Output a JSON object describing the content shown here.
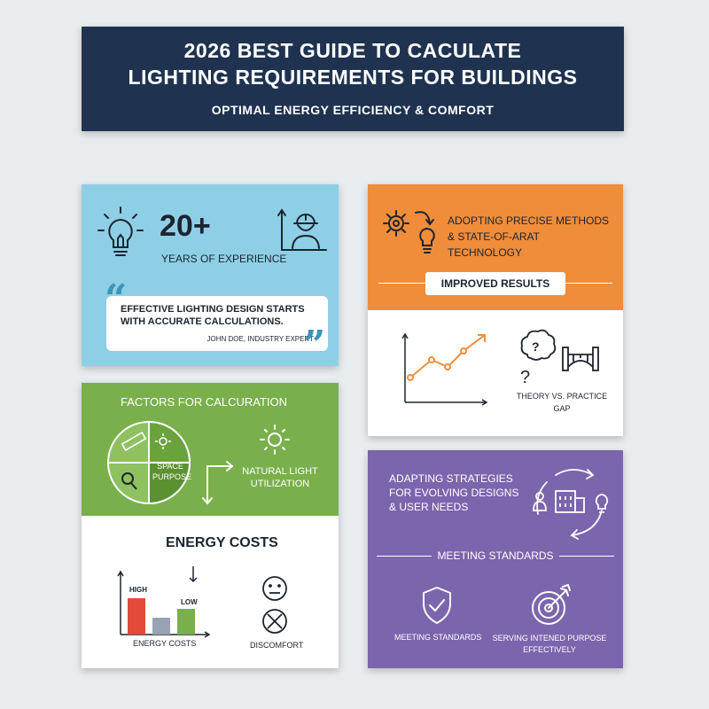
{
  "header": {
    "title_line1": "2026 Best Guide to Caculate",
    "title_line2": "Lighting Requirements for Buildings",
    "subtitle": "Optimal Energy Efficiency & Comfort"
  },
  "experience": {
    "stat": "20+",
    "stat_label": "Years of Experience",
    "quote": "Effective lighting design starts with accurate calculations.",
    "author": "John Doe, Industry Expert"
  },
  "factors": {
    "title": "Factors for Calcuration",
    "segment_label": "Space Purpose",
    "natural_light": "Natural Light Utilization",
    "energy_title": "Energy Costs",
    "bar_high_label": "High",
    "bar_low_label": "Low",
    "bar_axis_label": "Energy Costs",
    "discomfort_label": "Discomfort"
  },
  "methods": {
    "heading": "Adopting Precise Methods & State-of-Arat Technology",
    "results_label": "Improved Results",
    "gap_label": "Theory vs. Practice Gap"
  },
  "strategies": {
    "heading": "Adapting Strategies for Evolving Designs & User Needs",
    "standards_title": "Meeting Standards",
    "standards_icon_label": "Meeting Standards",
    "purpose_label": "Serving Intened Purpose Effectively"
  },
  "colors": {
    "banner": "#1f3350",
    "blue": "#8ecfe6",
    "green": "#79b04b",
    "orange": "#f08d3a",
    "purple": "#7b65ad",
    "bar_high": "#e34a3a",
    "bar_mid": "#9aa3b3",
    "bar_low": "#79b04b"
  },
  "icons": [
    "lightbulb-icon",
    "engineer-icon",
    "quote-icon",
    "ruler-icon",
    "sun-icon",
    "magnifier-icon",
    "arrow-icon",
    "neutral-face-icon",
    "x-circle-icon",
    "gear-icon",
    "line-chart-icon",
    "brain-question-icon",
    "bridge-icon",
    "person-icon",
    "building-icon",
    "cycle-arrows-icon",
    "shield-check-icon",
    "target-icon"
  ]
}
